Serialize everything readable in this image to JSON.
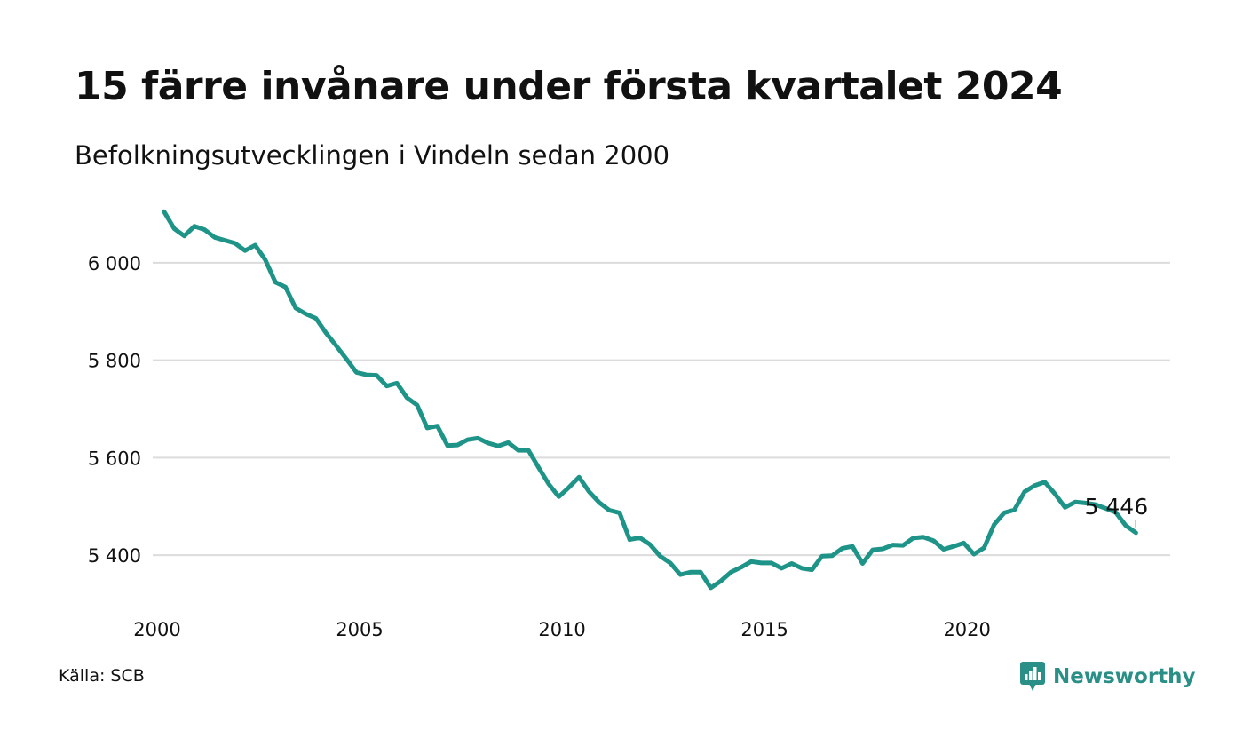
{
  "title": "15 färre invånare under första kvartalet 2024",
  "subtitle": "Befolkningsutvecklingen i Vindeln sedan 2000",
  "source": "Källa: SCB",
  "brand": {
    "name": "Newsworthy",
    "color": "#2a8f86",
    "icon": "newsworthy-chart-bubble-icon"
  },
  "chart_data": {
    "type": "line",
    "line_color": "#1e9488",
    "grid": true,
    "xlim": [
      2000,
      2024.25
    ],
    "ylim": [
      5300,
      6100
    ],
    "y_ticks": [
      5400,
      5600,
      5800,
      6000
    ],
    "y_tick_labels": [
      "5 400",
      "5 600",
      "5 800",
      "6 000"
    ],
    "x_ticks": [
      2000,
      2005,
      2010,
      2015,
      2020
    ],
    "x_tick_labels": [
      "2000",
      "2005",
      "2010",
      "2015",
      "2020"
    ],
    "end_label": "5 446",
    "series": [
      {
        "values": [
          [
            2000.17,
            6105
          ],
          [
            2000.42,
            6070
          ],
          [
            2000.67,
            6055
          ],
          [
            2000.92,
            6075
          ],
          [
            2001.17,
            6068
          ],
          [
            2001.42,
            6052
          ],
          [
            2001.67,
            6046
          ],
          [
            2001.92,
            6040
          ],
          [
            2002.17,
            6025
          ],
          [
            2002.42,
            6036
          ],
          [
            2002.67,
            6006
          ],
          [
            2002.92,
            5960
          ],
          [
            2003.17,
            5950
          ],
          [
            2003.42,
            5907
          ],
          [
            2003.67,
            5895
          ],
          [
            2003.92,
            5886
          ],
          [
            2004.17,
            5856
          ],
          [
            2004.42,
            5830
          ],
          [
            2004.67,
            5803
          ],
          [
            2004.92,
            5775
          ],
          [
            2005.17,
            5770
          ],
          [
            2005.42,
            5769
          ],
          [
            2005.67,
            5747
          ],
          [
            2005.92,
            5753
          ],
          [
            2006.17,
            5723
          ],
          [
            2006.42,
            5708
          ],
          [
            2006.67,
            5661
          ],
          [
            2006.92,
            5665
          ],
          [
            2007.17,
            5625
          ],
          [
            2007.42,
            5626
          ],
          [
            2007.67,
            5637
          ],
          [
            2007.92,
            5640
          ],
          [
            2008.17,
            5630
          ],
          [
            2008.42,
            5624
          ],
          [
            2008.67,
            5631
          ],
          [
            2008.92,
            5615
          ],
          [
            2009.17,
            5615
          ],
          [
            2009.42,
            5580
          ],
          [
            2009.67,
            5546
          ],
          [
            2009.92,
            5520
          ],
          [
            2010.17,
            5539
          ],
          [
            2010.42,
            5560
          ],
          [
            2010.67,
            5530
          ],
          [
            2010.92,
            5508
          ],
          [
            2011.17,
            5492
          ],
          [
            2011.42,
            5487
          ],
          [
            2011.67,
            5432
          ],
          [
            2011.92,
            5436
          ],
          [
            2012.17,
            5422
          ],
          [
            2012.42,
            5398
          ],
          [
            2012.67,
            5384
          ],
          [
            2012.92,
            5360
          ],
          [
            2013.17,
            5365
          ],
          [
            2013.42,
            5365
          ],
          [
            2013.67,
            5333
          ],
          [
            2013.92,
            5347
          ],
          [
            2014.17,
            5365
          ],
          [
            2014.42,
            5375
          ],
          [
            2014.67,
            5387
          ],
          [
            2014.92,
            5384
          ],
          [
            2015.17,
            5384
          ],
          [
            2015.42,
            5373
          ],
          [
            2015.67,
            5383
          ],
          [
            2015.92,
            5373
          ],
          [
            2016.17,
            5370
          ],
          [
            2016.42,
            5398
          ],
          [
            2016.67,
            5399
          ],
          [
            2016.92,
            5414
          ],
          [
            2017.17,
            5418
          ],
          [
            2017.42,
            5383
          ],
          [
            2017.67,
            5411
          ],
          [
            2017.92,
            5413
          ],
          [
            2018.17,
            5421
          ],
          [
            2018.42,
            5420
          ],
          [
            2018.67,
            5435
          ],
          [
            2018.92,
            5437
          ],
          [
            2019.17,
            5430
          ],
          [
            2019.42,
            5412
          ],
          [
            2019.67,
            5418
          ],
          [
            2019.92,
            5425
          ],
          [
            2020.17,
            5402
          ],
          [
            2020.42,
            5415
          ],
          [
            2020.67,
            5463
          ],
          [
            2020.92,
            5487
          ],
          [
            2021.17,
            5493
          ],
          [
            2021.42,
            5530
          ],
          [
            2021.67,
            5543
          ],
          [
            2021.92,
            5550
          ],
          [
            2022.17,
            5526
          ],
          [
            2022.42,
            5498
          ],
          [
            2022.67,
            5509
          ],
          [
            2022.92,
            5507
          ],
          [
            2023.17,
            5504
          ],
          [
            2023.42,
            5496
          ],
          [
            2023.67,
            5488
          ],
          [
            2023.92,
            5461
          ],
          [
            2024.17,
            5446
          ]
        ]
      }
    ]
  }
}
